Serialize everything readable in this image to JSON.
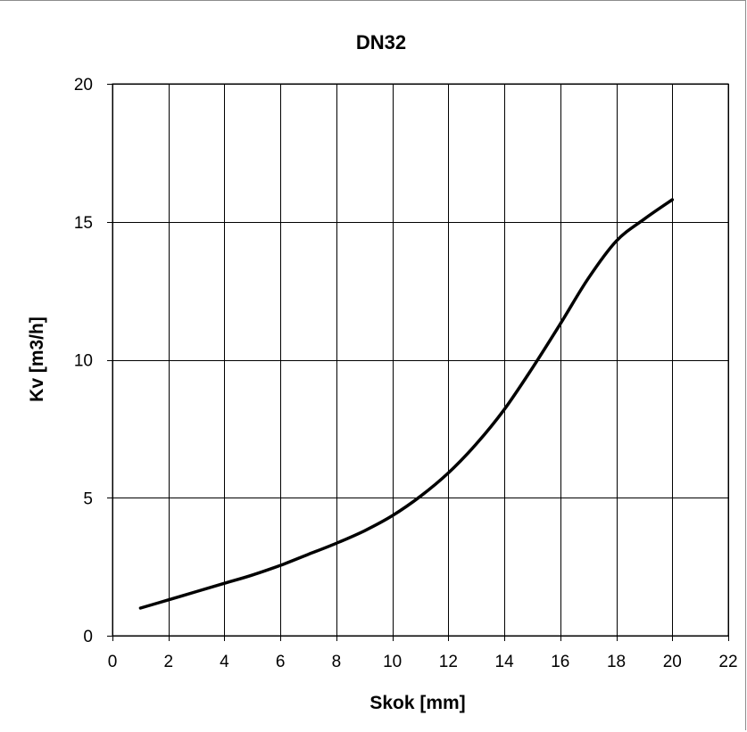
{
  "chart_data": {
    "type": "line",
    "title": "DN32",
    "xlabel": "Skok [mm]",
    "ylabel": "Kv [m3/h]",
    "xlim": [
      0,
      22
    ],
    "ylim": [
      0,
      20
    ],
    "xticks": [
      0,
      2,
      4,
      6,
      8,
      10,
      12,
      14,
      16,
      18,
      20,
      22
    ],
    "yticks": [
      0,
      5,
      10,
      15,
      20
    ],
    "grid": true,
    "legend": "none",
    "line_color": "#000000",
    "series": [
      {
        "x": [
          1,
          2,
          3,
          4,
          5,
          6,
          7,
          8,
          9,
          10,
          11,
          12,
          13,
          14,
          15,
          16,
          17,
          18,
          19,
          20
        ],
        "y": [
          1.0,
          1.3,
          1.6,
          1.9,
          2.2,
          2.55,
          2.95,
          3.35,
          3.8,
          4.35,
          5.05,
          5.9,
          6.95,
          8.2,
          9.7,
          11.3,
          12.95,
          14.3,
          15.1,
          15.8
        ]
      }
    ]
  }
}
